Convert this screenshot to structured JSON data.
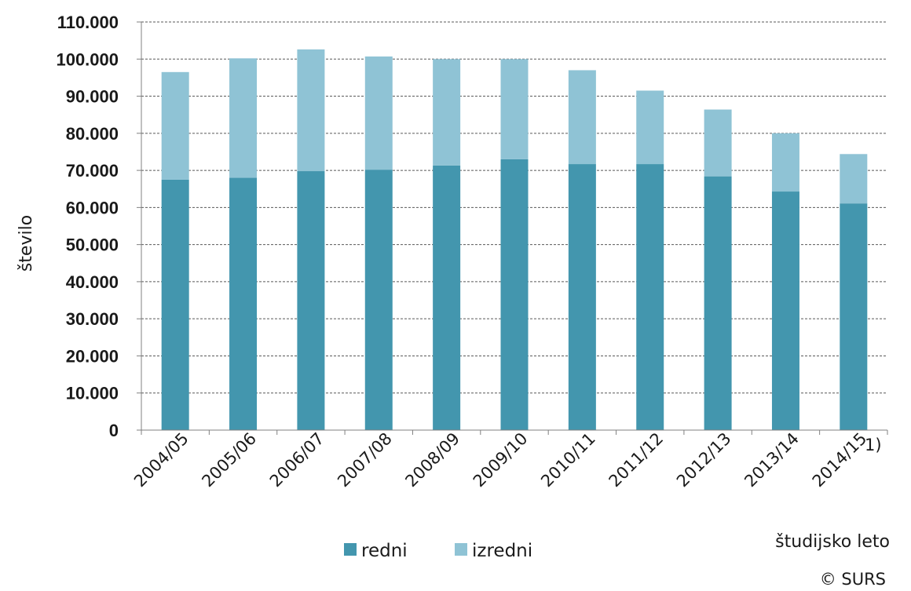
{
  "chart_data": {
    "type": "bar",
    "stacked": true,
    "categories": [
      "2004/05",
      "2005/06",
      "2006/07",
      "2007/08",
      "2008/09",
      "2009/10",
      "2010/11",
      "2011/12",
      "2012/13",
      "2013/14",
      "2014/15"
    ],
    "footnote_marker": "1)",
    "series": [
      {
        "name": "redni",
        "color": "#4396ae",
        "values": [
          67500,
          68000,
          69800,
          70200,
          71300,
          73000,
          71700,
          71700,
          68400,
          64300,
          61100
        ]
      },
      {
        "name": "izredni",
        "color": "#8fc3d5",
        "values": [
          29000,
          32200,
          32800,
          30500,
          28700,
          27000,
          25300,
          19800,
          18000,
          15700,
          13300
        ]
      }
    ],
    "ylim": [
      0,
      110000
    ],
    "yticks": [
      0,
      10000,
      20000,
      30000,
      40000,
      50000,
      60000,
      70000,
      80000,
      90000,
      100000,
      110000
    ],
    "ytick_labels": [
      "0",
      "10.000",
      "20.000",
      "30.000",
      "40.000",
      "50.000",
      "60.000",
      "70.000",
      "80.000",
      "90.000",
      "100.000",
      "110.000"
    ],
    "ylabel": "število",
    "xlabel": "študijsko leto",
    "grid": true,
    "legend_position": "bottom"
  },
  "source_credit": "© SURS"
}
